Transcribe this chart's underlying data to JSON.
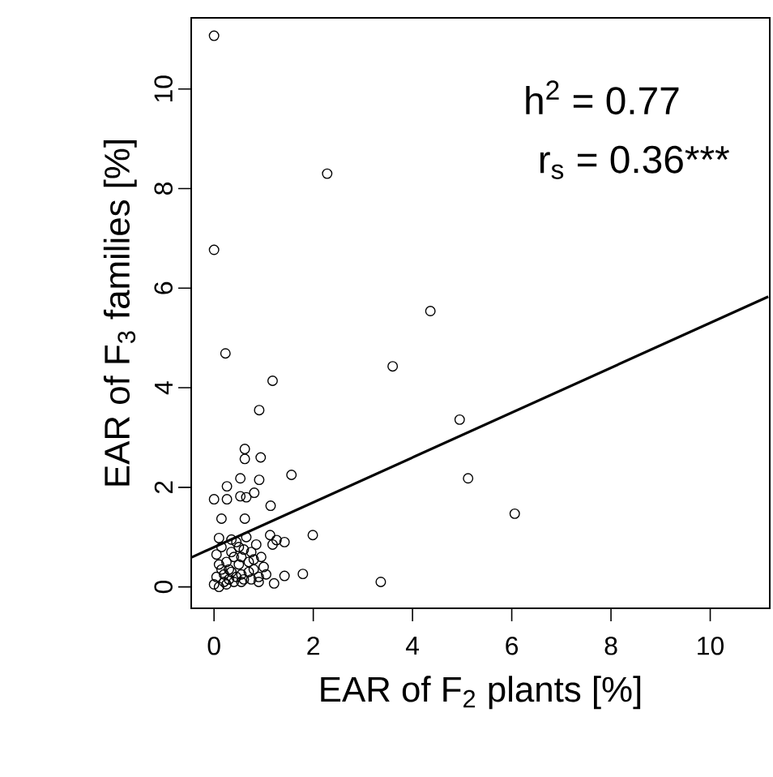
{
  "chart_data": {
    "type": "scatter",
    "xlabel": "EAR of F$_{2}$ plants [%]",
    "ylabel": "EAR of  F$_{3}$ families [%]",
    "annotations": [
      "h$^{2}$ = 0.77",
      "r$_{s}$ = 0.36***"
    ],
    "xlim": [
      -0.46,
      11.2
    ],
    "ylim": [
      -0.43,
      11.43
    ],
    "xticks": [
      0,
      2,
      4,
      6,
      8,
      10
    ],
    "yticks": [
      0,
      2,
      4,
      6,
      8,
      10
    ],
    "series": [
      {
        "color": "#000000",
        "marker": "circle",
        "x": [
          0,
          2.28,
          0,
          4.36,
          0.23,
          1.18,
          3.6,
          4.95,
          5.12,
          6.06,
          0.91,
          1.56,
          0.62,
          0.62,
          0.94,
          0.53,
          0.91,
          0.26,
          0.81,
          0,
          0.53,
          0.26,
          0.65,
          1.14,
          0.15,
          0.62,
          1.99,
          1.13,
          1.26,
          1.42,
          1.18,
          1.79,
          1.42,
          1.21,
          3.36,
          0.1,
          0,
          0.05,
          0.1,
          0.15,
          0.2,
          0.25,
          0.3,
          0.35,
          0.4,
          0.45,
          0.5,
          0.55,
          0.6,
          0.7,
          0.8,
          0.9,
          1.0,
          0.05,
          0.15,
          0.25,
          0.35,
          0.45,
          0.55,
          0.65,
          0.75,
          0.85,
          0.95,
          0.1,
          0.3,
          0.5,
          0.7,
          0.9,
          0.2,
          0.4,
          0.6,
          0.8,
          1.05,
          0.35,
          0.55,
          0.75
        ],
        "values": [
          11.07,
          8.3,
          6.77,
          5.54,
          4.69,
          4.14,
          4.43,
          3.36,
          2.18,
          1.47,
          3.55,
          2.25,
          2.77,
          2.57,
          2.6,
          2.18,
          2.15,
          2.02,
          1.89,
          1.76,
          1.82,
          1.76,
          1.8,
          1.63,
          1.37,
          1.37,
          1.04,
          1.04,
          0.94,
          0.9,
          0.85,
          0.26,
          0.22,
          0.07,
          0.1,
          0.98,
          0.05,
          0.2,
          0.0,
          0.35,
          0.1,
          0.5,
          0.15,
          0.3,
          0.6,
          0.2,
          0.45,
          0.1,
          0.75,
          0.3,
          0.55,
          0.2,
          0.4,
          0.65,
          0.8,
          0.05,
          0.7,
          0.9,
          0.25,
          1.0,
          0.15,
          0.85,
          0.6,
          0.45,
          0.35,
          0.8,
          0.5,
          0.1,
          0.25,
          0.1,
          0.15,
          0.35,
          0.25,
          0.95,
          0.6,
          0.7
        ]
      },
      {
        "type": "line",
        "color": "#000000",
        "marker": "none",
        "x": [
          -0.46,
          11.17
        ],
        "values": [
          0.59,
          5.83
        ]
      }
    ]
  }
}
